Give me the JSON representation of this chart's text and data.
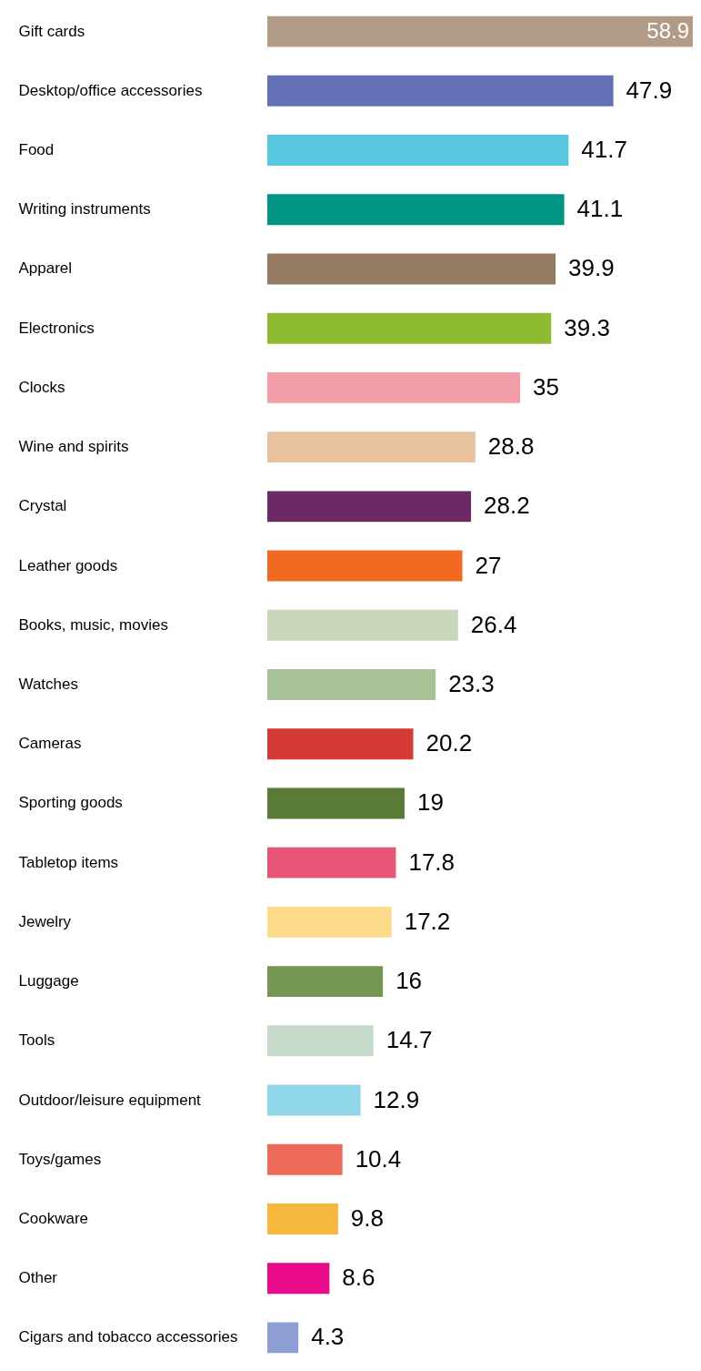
{
  "chart_data": {
    "type": "bar",
    "orientation": "horizontal",
    "data_labels": true,
    "categories": [
      "Gift cards",
      "Desktop/office accessories",
      "Food",
      "Writing instruments",
      "Apparel",
      "Electronics",
      "Clocks",
      "Wine and spirits",
      "Crystal",
      "Leather goods",
      "Books, music, movies",
      "Watches",
      "Cameras",
      "Sporting goods",
      "Tabletop items",
      "Jewelry",
      "Luggage",
      "Tools",
      "Outdoor/leisure equipment",
      "Toys/games",
      "Cookware",
      "Other",
      "Cigars and tobacco accessories"
    ],
    "values": [
      58.9,
      47.9,
      41.7,
      41.1,
      39.9,
      39.3,
      35,
      28.8,
      28.2,
      27,
      26.4,
      23.3,
      20.2,
      19,
      17.8,
      17.2,
      16,
      14.7,
      12.9,
      10.4,
      9.8,
      8.6,
      4.3
    ],
    "colors": [
      "#b39c87",
      "#6370b5",
      "#57c8e0",
      "#009683",
      "#957a62",
      "#8fbb33",
      "#f19ea8",
      "#e8c19e",
      "#6b2a64",
      "#f26a22",
      "#c8d6b9",
      "#a7c296",
      "#d63a35",
      "#5a7a37",
      "#e85577",
      "#fedb8b",
      "#749652",
      "#c7dbcc",
      "#8fd6e8",
      "#ec6a57",
      "#f5b83c",
      "#ea0b8c",
      "#8c9ed2"
    ]
  }
}
